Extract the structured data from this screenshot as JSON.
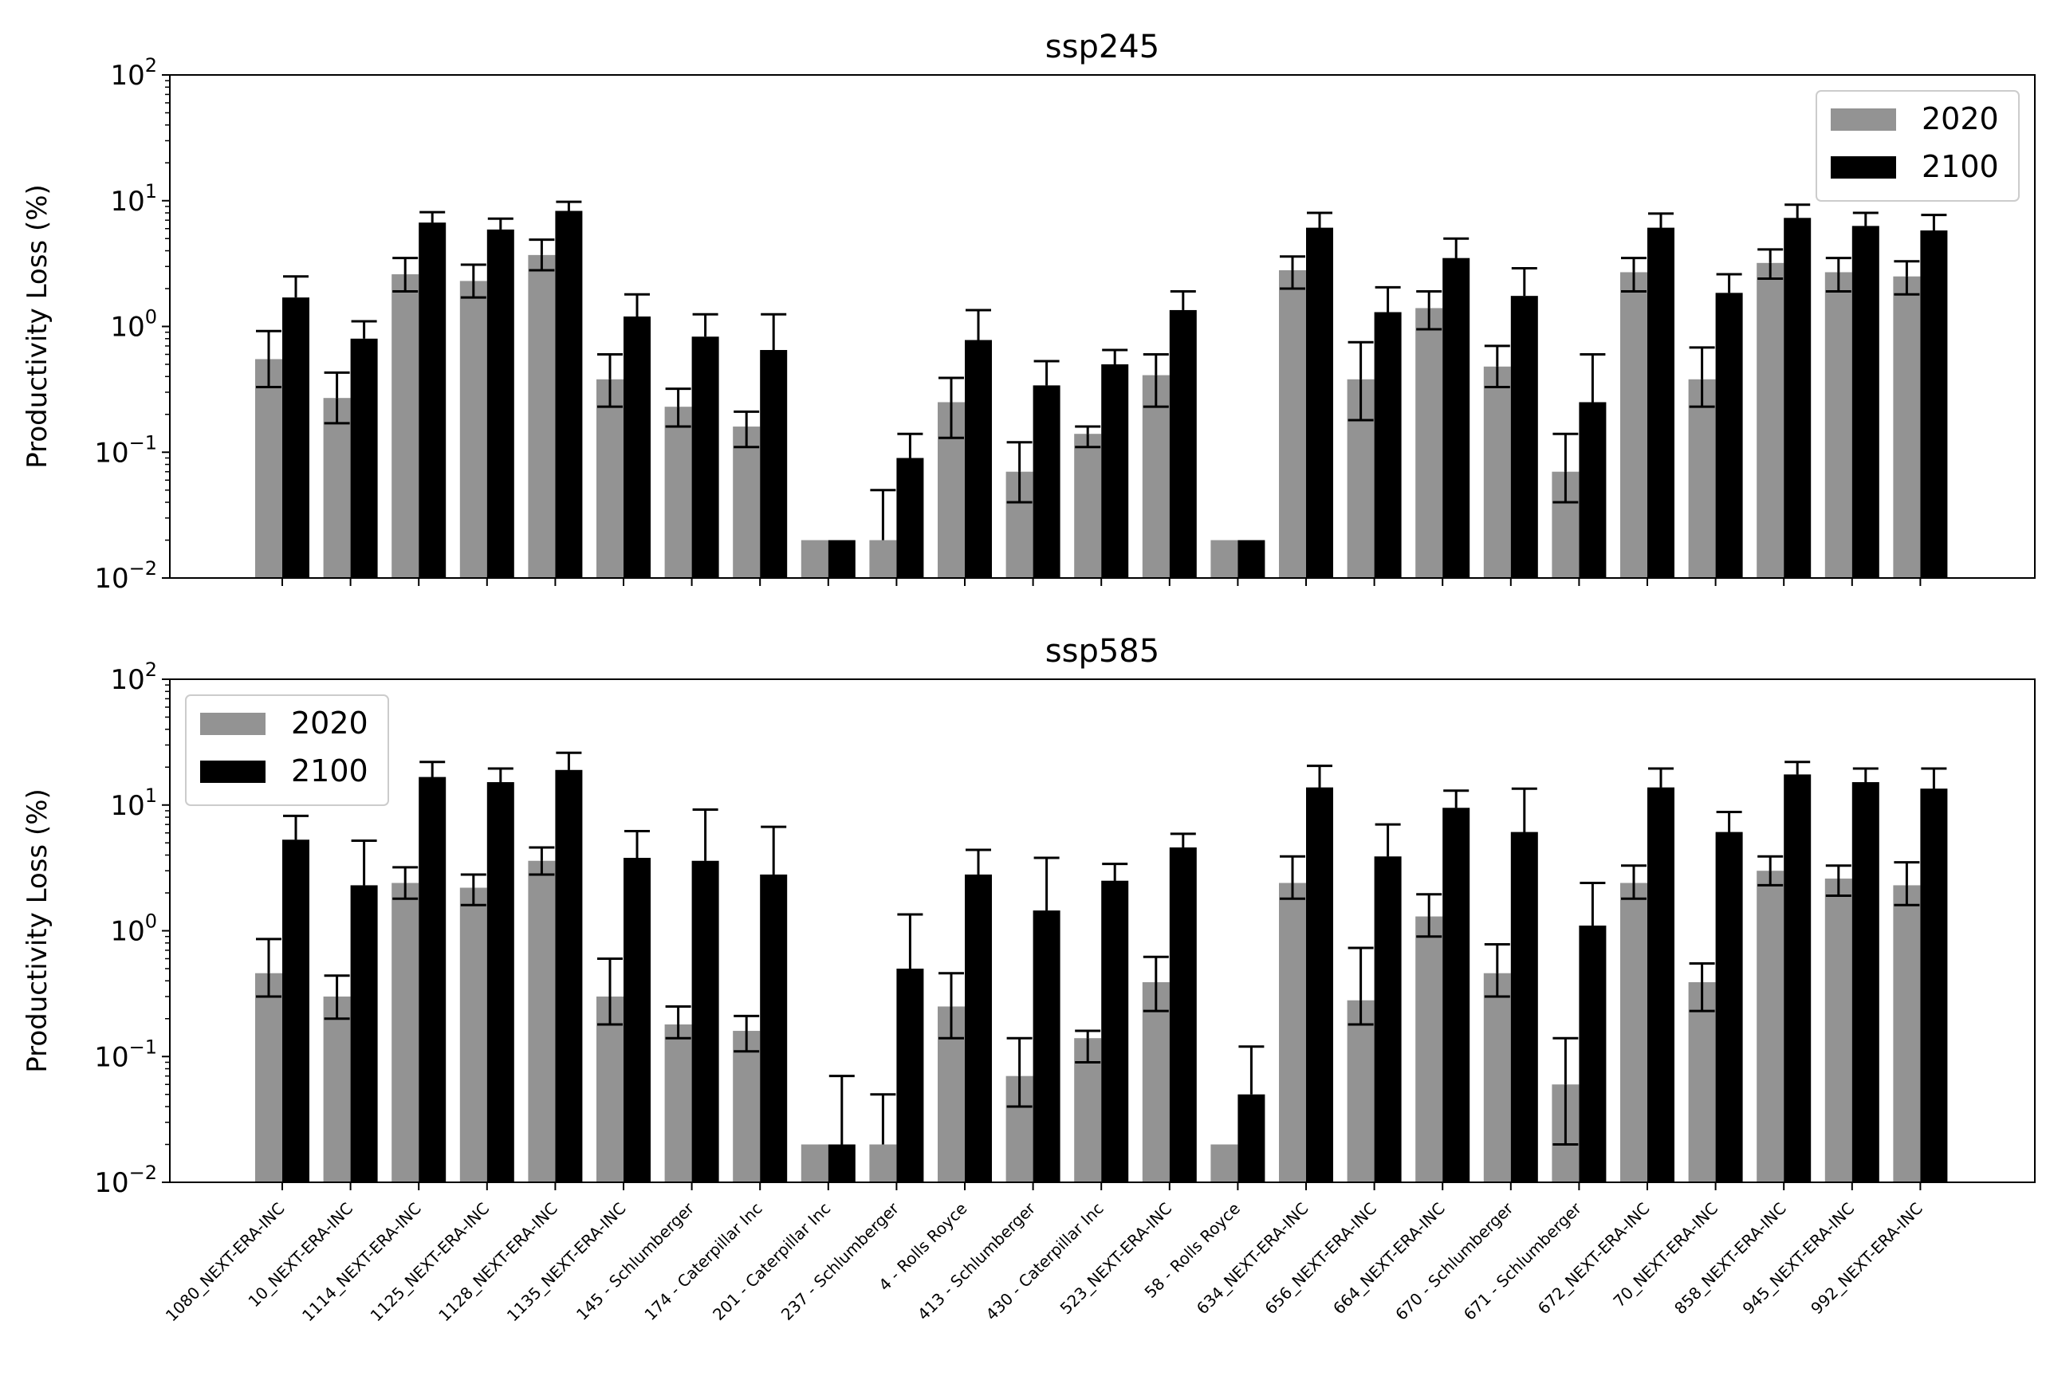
{
  "chart_data": [
    {
      "type": "bar",
      "title": "ssp245",
      "ylabel": "Productivity Loss (%)",
      "xlabel": "",
      "yscale": "log",
      "ylim": [
        0.01,
        100
      ],
      "yticks": [
        {
          "base": "10",
          "exp": "−2"
        },
        {
          "base": "10",
          "exp": "−1"
        },
        {
          "base": "10",
          "exp": "0"
        },
        {
          "base": "10",
          "exp": "1"
        },
        {
          "base": "10",
          "exp": "2"
        }
      ],
      "legend_position": "top-right",
      "categories": [
        "1080_NEXT-ERA-INC",
        "10_NEXT-ERA-INC",
        "1114_NEXT-ERA-INC",
        "1125_NEXT-ERA-INC",
        "1128_NEXT-ERA-INC",
        "1135_NEXT-ERA-INC",
        "145 - Schlumberger",
        "174 - Caterpillar Inc",
        "201 - Caterpillar Inc",
        "237 - Schlumberger",
        "4 - Rolls Royce",
        "413 - Schlumberger",
        "430 - Caterpillar Inc",
        "523_NEXT-ERA-INC",
        "58 - Rolls Royce",
        "634_NEXT-ERA-INC",
        "656_NEXT-ERA-INC",
        "664_NEXT-ERA-INC",
        "670 - Schlumberger",
        "671 - Schlumberger",
        "672_NEXT-ERA-INC",
        "70_NEXT-ERA-INC",
        "858_NEXT-ERA-INC",
        "945_NEXT-ERA-INC",
        "992_NEXT-ERA-INC"
      ],
      "series": [
        {
          "name": "2020",
          "color": "#939393",
          "values": [
            0.55,
            0.27,
            2.6,
            2.3,
            3.7,
            0.38,
            0.23,
            0.16,
            0.02,
            0.02,
            0.25,
            0.07,
            0.14,
            0.41,
            0.02,
            2.8,
            0.38,
            1.4,
            0.48,
            0.07,
            2.7,
            0.38,
            3.2,
            2.7,
            2.5
          ],
          "err_low": [
            0.33,
            0.17,
            1.9,
            1.7,
            2.8,
            0.23,
            0.16,
            0.11,
            null,
            null,
            0.13,
            0.04,
            0.11,
            0.23,
            null,
            2.0,
            0.18,
            0.95,
            0.33,
            0.04,
            1.9,
            0.23,
            2.4,
            1.9,
            1.8
          ],
          "err_high": [
            0.92,
            0.43,
            3.5,
            3.1,
            4.9,
            0.6,
            0.32,
            0.21,
            null,
            0.05,
            0.39,
            0.12,
            0.16,
            0.6,
            null,
            3.6,
            0.75,
            1.9,
            0.7,
            0.14,
            3.5,
            0.68,
            4.1,
            3.5,
            3.3
          ]
        },
        {
          "name": "2100",
          "color": "#000000",
          "values": [
            1.7,
            0.8,
            6.7,
            5.9,
            8.3,
            1.2,
            0.83,
            0.65,
            0.02,
            0.09,
            0.78,
            0.34,
            0.5,
            1.35,
            0.02,
            6.1,
            1.3,
            3.5,
            1.75,
            0.25,
            6.1,
            1.85,
            7.3,
            6.3,
            5.8
          ],
          "err_low": [
            null,
            null,
            5.6,
            4.9,
            6.9,
            null,
            null,
            null,
            null,
            null,
            null,
            null,
            null,
            null,
            null,
            5.0,
            null,
            2.6,
            null,
            null,
            5.0,
            null,
            6.1,
            5.2,
            4.8
          ],
          "err_high": [
            2.5,
            1.1,
            8.1,
            7.2,
            9.8,
            1.8,
            1.25,
            1.25,
            null,
            0.14,
            1.35,
            0.53,
            0.65,
            1.9,
            null,
            8.0,
            2.05,
            5.0,
            2.9,
            0.6,
            7.9,
            2.6,
            9.3,
            8.0,
            7.7
          ]
        }
      ]
    },
    {
      "type": "bar",
      "title": "ssp585",
      "ylabel": "Productivity Loss (%)",
      "xlabel": "",
      "yscale": "log",
      "ylim": [
        0.01,
        100
      ],
      "yticks": [
        {
          "base": "10",
          "exp": "−2"
        },
        {
          "base": "10",
          "exp": "−1"
        },
        {
          "base": "10",
          "exp": "0"
        },
        {
          "base": "10",
          "exp": "1"
        },
        {
          "base": "10",
          "exp": "2"
        }
      ],
      "legend_position": "top-left",
      "categories": [
        "1080_NEXT-ERA-INC",
        "10_NEXT-ERA-INC",
        "1114_NEXT-ERA-INC",
        "1125_NEXT-ERA-INC",
        "1128_NEXT-ERA-INC",
        "1135_NEXT-ERA-INC",
        "145 - Schlumberger",
        "174 - Caterpillar Inc",
        "201 - Caterpillar Inc",
        "237 - Schlumberger",
        "4 - Rolls Royce",
        "413 - Schlumberger",
        "430 - Caterpillar Inc",
        "523_NEXT-ERA-INC",
        "58 - Rolls Royce",
        "634_NEXT-ERA-INC",
        "656_NEXT-ERA-INC",
        "664_NEXT-ERA-INC",
        "670 - Schlumberger",
        "671 - Schlumberger",
        "672_NEXT-ERA-INC",
        "70_NEXT-ERA-INC",
        "858_NEXT-ERA-INC",
        "945_NEXT-ERA-INC",
        "992_NEXT-ERA-INC"
      ],
      "series": [
        {
          "name": "2020",
          "color": "#939393",
          "values": [
            0.46,
            0.3,
            2.4,
            2.2,
            3.6,
            0.3,
            0.18,
            0.16,
            0.02,
            0.02,
            0.25,
            0.07,
            0.14,
            0.39,
            0.02,
            2.4,
            0.28,
            1.3,
            0.46,
            0.06,
            2.4,
            0.39,
            3.0,
            2.6,
            2.3
          ],
          "err_low": [
            0.3,
            0.2,
            1.8,
            1.6,
            2.8,
            0.18,
            0.14,
            0.11,
            null,
            null,
            0.14,
            0.04,
            0.09,
            0.23,
            null,
            1.8,
            0.18,
            0.9,
            0.3,
            0.02,
            1.8,
            0.23,
            2.3,
            1.9,
            1.6
          ],
          "err_high": [
            0.86,
            0.44,
            3.2,
            2.8,
            4.6,
            0.6,
            0.25,
            0.21,
            null,
            0.05,
            0.46,
            0.14,
            0.16,
            0.62,
            null,
            3.9,
            0.73,
            1.95,
            0.78,
            0.14,
            3.3,
            0.55,
            3.9,
            3.3,
            3.5
          ]
        },
        {
          "name": "2100",
          "color": "#000000",
          "values": [
            5.3,
            2.3,
            16.7,
            15.2,
            19.0,
            3.8,
            3.6,
            2.8,
            0.02,
            0.5,
            2.8,
            1.45,
            2.5,
            4.6,
            0.05,
            13.8,
            3.9,
            9.5,
            6.1,
            1.1,
            13.8,
            6.1,
            17.5,
            15.2,
            13.5
          ],
          "err_low": [
            3.6,
            1.3,
            12.5,
            11.8,
            15.5,
            2.6,
            null,
            1.75,
            null,
            0.33,
            2.05,
            null,
            1.85,
            3.6,
            null,
            10.5,
            2.5,
            7.5,
            3.7,
            null,
            10.5,
            5.1,
            13.5,
            11.5,
            10.5
          ],
          "err_high": [
            8.2,
            5.2,
            22.0,
            19.5,
            26.0,
            6.2,
            9.2,
            6.7,
            0.07,
            1.35,
            4.4,
            3.8,
            3.4,
            5.9,
            0.12,
            20.5,
            7.0,
            13.0,
            13.5,
            2.4,
            19.5,
            8.8,
            22.0,
            19.5,
            19.5
          ]
        }
      ]
    }
  ]
}
